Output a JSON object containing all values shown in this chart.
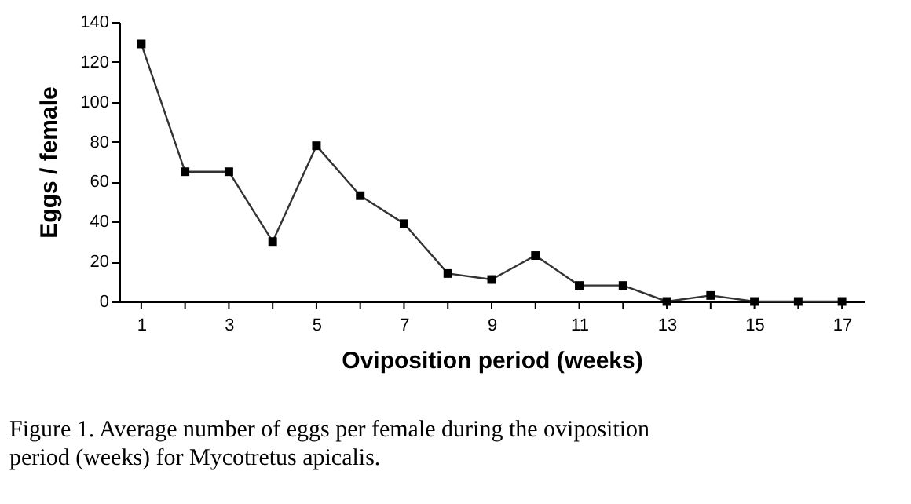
{
  "chart_data": {
    "type": "line",
    "xlabel": "Oviposition period (weeks)",
    "ylabel": "Eggs / female",
    "x": [
      1,
      2,
      3,
      4,
      5,
      6,
      7,
      8,
      9,
      10,
      11,
      12,
      13,
      14,
      15,
      16,
      17
    ],
    "series": [
      {
        "color": "#000000",
        "values": [
          129,
          65,
          65,
          30,
          78,
          53,
          39,
          14,
          11,
          23,
          8,
          8,
          0,
          3,
          0,
          0,
          0
        ]
      }
    ],
    "xlim": [
      0.5,
      17.5
    ],
    "xticks": [
      1,
      {
        "value": 2,
        "label": null
      },
      3,
      {
        "value": 4,
        "label": null
      },
      5,
      {
        "value": 6,
        "label": null
      },
      7,
      {
        "value": 8,
        "label": null
      },
      9,
      {
        "value": 10,
        "label": null
      },
      11,
      {
        "value": 12,
        "label": null
      },
      13,
      {
        "value": 14,
        "label": null
      },
      15,
      {
        "value": 16,
        "label": null
      },
      17
    ],
    "ylim": [
      0,
      140
    ],
    "yticks": [
      0,
      20,
      40,
      60,
      80,
      100,
      120,
      140
    ],
    "grid": false,
    "marker": "square",
    "line_style": "solid",
    "annotations": [
      "Figure 1. Average number of eggs per female during the oviposition period (weeks) for Mycotretus apicalis."
    ]
  }
}
